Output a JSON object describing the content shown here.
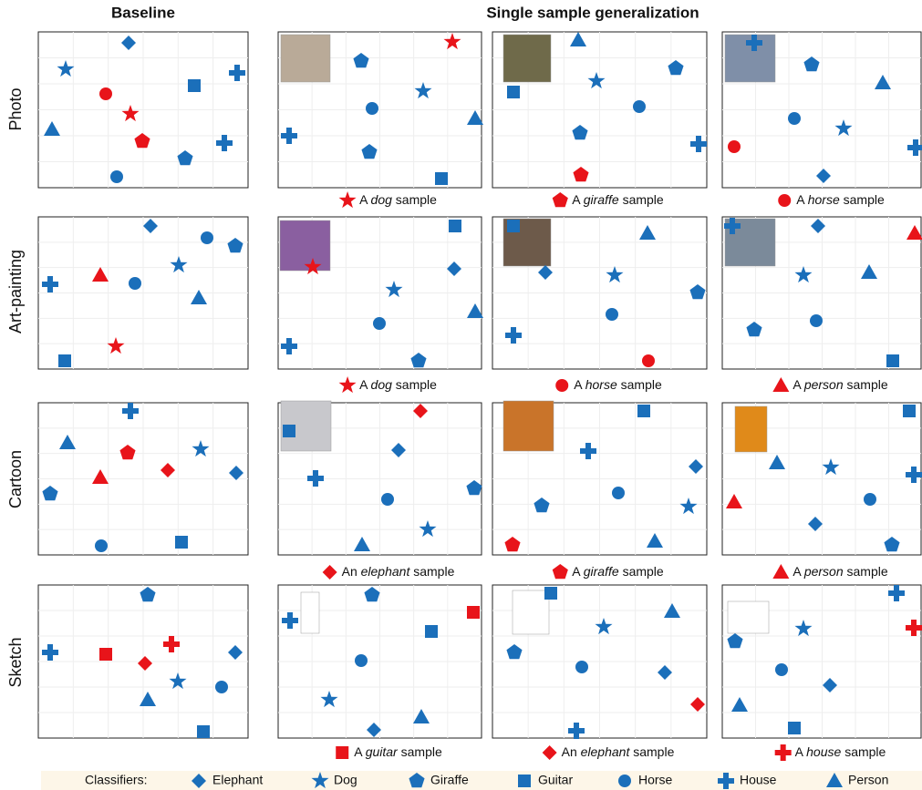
{
  "headers": {
    "baseline": "Baseline",
    "single": "Single sample generalization"
  },
  "rows": [
    {
      "label": "Photo",
      "captions": [
        {
          "article": "A",
          "class": "dog",
          "rest": "sample"
        },
        {
          "article": "A",
          "class": "giraffe",
          "rest": "sample"
        },
        {
          "article": "A",
          "class": "horse",
          "rest": "sample"
        }
      ]
    },
    {
      "label": "Art-painting",
      "captions": [
        {
          "article": "A",
          "class": "dog",
          "rest": "sample"
        },
        {
          "article": "A",
          "class": "horse",
          "rest": "sample"
        },
        {
          "article": "A",
          "class": "person",
          "rest": "sample"
        }
      ]
    },
    {
      "label": "Cartoon",
      "captions": [
        {
          "article": "An",
          "class": "elephant",
          "rest": "sample"
        },
        {
          "article": "A",
          "class": "giraffe",
          "rest": "sample"
        },
        {
          "article": "A",
          "class": "person",
          "rest": "sample"
        }
      ]
    },
    {
      "label": "Sketch",
      "captions": [
        {
          "article": "A",
          "class": "guitar",
          "rest": "sample"
        },
        {
          "article": "An",
          "class": "elephant",
          "rest": "sample"
        },
        {
          "article": "A",
          "class": "house",
          "rest": "sample"
        }
      ]
    }
  ],
  "legend": {
    "title": "Classifiers:",
    "items": [
      "Elephant",
      "Dog",
      "Giraffe",
      "Guitar",
      "Horse",
      "House",
      "Person"
    ]
  }
}
